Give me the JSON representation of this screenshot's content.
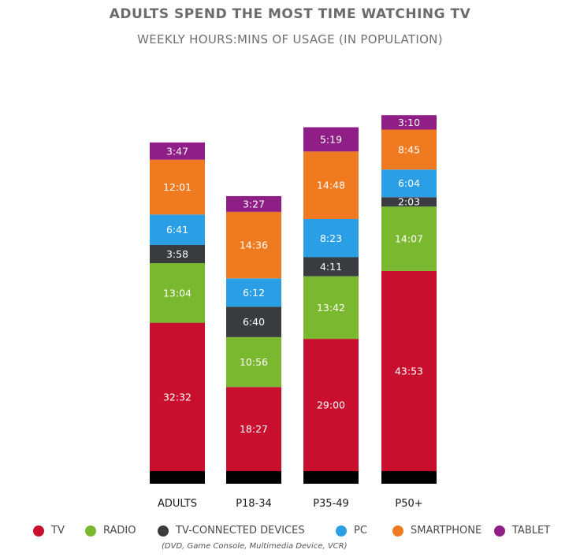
{
  "title": "ADULTS SPEND THE MOST TIME WATCHING TV",
  "subtitle": "WEEKLY HOURS:MINS OF USAGE (IN POPULATION)",
  "legend_note": "(DVD, Game Console, Multimedia Device, VCR)",
  "chart_data": {
    "type": "bar",
    "stacked": true,
    "unit": "hours:minutes per week",
    "categories": [
      "ADULTS",
      "P18-34",
      "P35-49",
      "P50+"
    ],
    "series": [
      {
        "name": "TV",
        "color": "#c8102e",
        "labels": [
          "32:32",
          "18:27",
          "29:00",
          "43:53"
        ],
        "values": [
          32.533,
          18.45,
          29.0,
          43.883
        ]
      },
      {
        "name": "RADIO",
        "color": "#7ab82f",
        "labels": [
          "13:04",
          "10:56",
          "13:42",
          "14:07"
        ],
        "values": [
          13.067,
          10.933,
          13.7,
          14.117
        ]
      },
      {
        "name": "TV-CONNECTED DEVICES",
        "color": "#3a3b3e",
        "labels": [
          "3:58",
          "6:40",
          "4:11",
          "2:03"
        ],
        "values": [
          3.967,
          6.667,
          4.183,
          2.05
        ]
      },
      {
        "name": "PC",
        "color": "#2b9fe6",
        "labels": [
          "6:41",
          "6:12",
          "8:23",
          "6:04"
        ],
        "values": [
          6.683,
          6.2,
          8.383,
          6.067
        ]
      },
      {
        "name": "SMARTPHONE",
        "color": "#f07a1f",
        "labels": [
          "12:01",
          "14:36",
          "14:48",
          "8:45"
        ],
        "values": [
          12.017,
          14.6,
          14.8,
          8.75
        ]
      },
      {
        "name": "TABLET",
        "color": "#8f1f86",
        "labels": [
          "3:47",
          "3:27",
          "5:19",
          "3:10"
        ],
        "values": [
          3.783,
          3.45,
          5.317,
          3.167
        ]
      }
    ],
    "base_color": "#000000",
    "legend_position": "bottom",
    "grid": false
  }
}
